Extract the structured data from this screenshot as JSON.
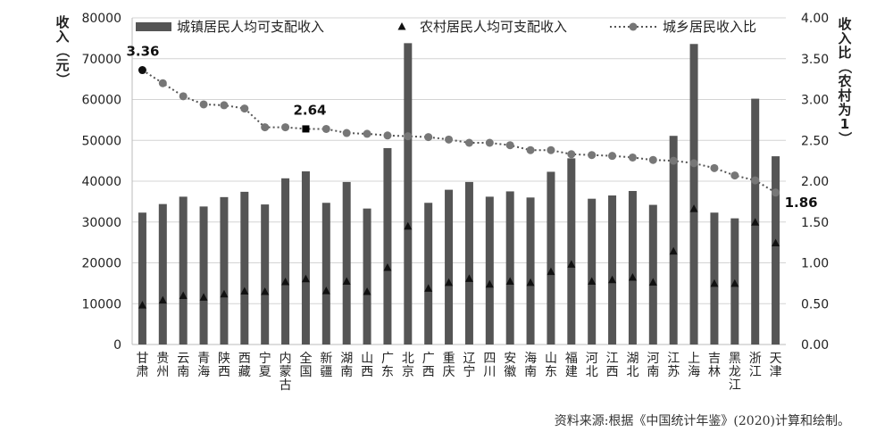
{
  "chart_data": {
    "type": "bar",
    "categories": [
      "甘肃",
      "贵州",
      "云南",
      "青海",
      "陕西",
      "西藏",
      "宁夏",
      "内蒙古",
      "全国",
      "新疆",
      "湖南",
      "山西",
      "广东",
      "北京",
      "广西",
      "重庆",
      "辽宁",
      "四川",
      "安徽",
      "海南",
      "山东",
      "福建",
      "河北",
      "江西",
      "湖北",
      "河南",
      "江苏",
      "上海",
      "吉林",
      "黑龙江",
      "浙江",
      "天津"
    ],
    "series": [
      {
        "name": "城镇居民人均可支配收入",
        "kind": "bar",
        "axis": "left",
        "values": [
          32300,
          34400,
          36200,
          33800,
          36100,
          37400,
          34300,
          40700,
          42400,
          34700,
          39800,
          33300,
          48100,
          73800,
          34700,
          37900,
          39800,
          36200,
          37500,
          36000,
          42300,
          45600,
          35700,
          36500,
          37600,
          34200,
          51100,
          73600,
          32300,
          30900,
          60200,
          46100
        ]
      },
      {
        "name": "农村居民人均可支配收入",
        "kind": "marker",
        "axis": "left",
        "values": [
          9600,
          10800,
          11900,
          11500,
          12300,
          13000,
          12900,
          15300,
          16000,
          13100,
          15400,
          12900,
          18800,
          28900,
          13700,
          15100,
          16100,
          14700,
          15400,
          15100,
          17800,
          19600,
          15400,
          15800,
          16400,
          15200,
          22800,
          33200,
          14900,
          14900,
          29900,
          24800
        ]
      },
      {
        "name": "城乡居民收入比",
        "kind": "line",
        "axis": "right",
        "values": [
          3.36,
          3.2,
          3.04,
          2.94,
          2.93,
          2.89,
          2.66,
          2.66,
          2.64,
          2.64,
          2.59,
          2.58,
          2.56,
          2.55,
          2.54,
          2.51,
          2.47,
          2.47,
          2.44,
          2.38,
          2.38,
          2.33,
          2.32,
          2.31,
          2.29,
          2.26,
          2.25,
          2.22,
          2.16,
          2.07,
          2.01,
          1.86
        ]
      }
    ],
    "ylabel": "收入（元）",
    "y2label": "收入比（农村为1）",
    "ylim": [
      0,
      80000
    ],
    "y2lim": [
      0,
      4.0
    ],
    "yticks": [
      "0",
      "10000",
      "20000",
      "30000",
      "40000",
      "50000",
      "60000",
      "70000",
      "80000"
    ],
    "y2ticks": [
      "0.00",
      "0.50",
      "1.00",
      "1.50",
      "2.00",
      "2.50",
      "3.00",
      "3.50",
      "4.00"
    ],
    "annotations": [
      {
        "category_index": 0,
        "series": "城乡居民收入比",
        "text": "3.36"
      },
      {
        "category_index": 8,
        "series": "城乡居民收入比",
        "text": "2.64"
      },
      {
        "category_index": 31,
        "series": "城乡居民收入比",
        "text": "1.86"
      }
    ],
    "legend": "top",
    "grid": true
  },
  "source_note": "资料来源:根据《中国统计年鉴》(2020)计算和绘制。"
}
